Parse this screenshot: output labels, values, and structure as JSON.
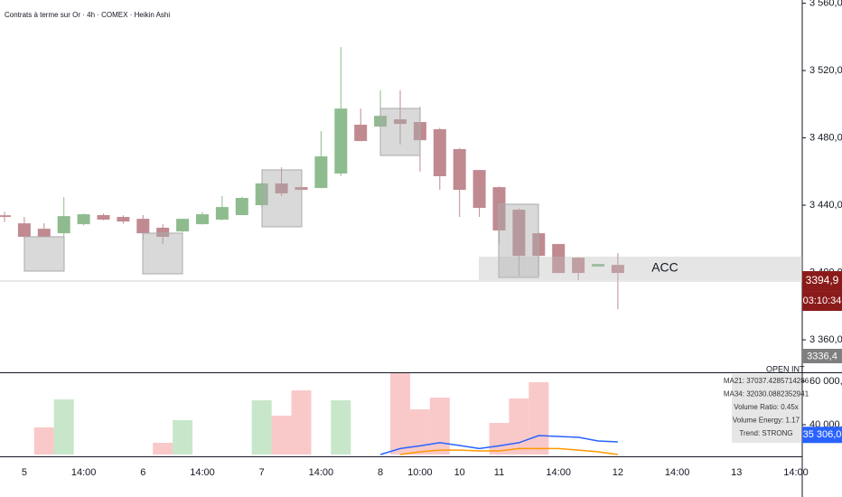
{
  "chart_data": [
    {
      "type": "candlestick",
      "title": "Contrats à terme sur Or · 4h · COMEX · Heikin Ashi",
      "x_labels": [
        null,
        "5",
        null,
        null,
        "14:00",
        null,
        null,
        "6",
        null,
        null,
        "14:00",
        null,
        null,
        "7",
        null,
        null,
        "14:00",
        null,
        null,
        "8",
        null,
        "10:00",
        null,
        "10",
        null,
        "11",
        null,
        null,
        "14:00",
        null,
        null,
        "12",
        null,
        null,
        "14:00",
        null,
        null,
        "13",
        null,
        null,
        "14:00"
      ],
      "open": [
        3434,
        3429.2,
        3426,
        3423.3,
        3428.7,
        3434.1,
        3433,
        3431.9,
        3426.6,
        3424.4,
        3428.7,
        3431.4,
        3434.1,
        3440,
        3452.9,
        3450.7,
        3450.2,
        3458.8,
        3487.8,
        3486.7,
        3491,
        3489.4,
        3485.1,
        3473.3,
        3460.9,
        3450.7,
        3437.3,
        3423.3,
        3416.9,
        3408.8,
        3403.5,
        3404.5
      ],
      "high": [
        3436,
        3433,
        3429.2,
        3444.8,
        3435,
        3435,
        3434,
        3434.1,
        3428.7,
        3432,
        3436,
        3445.4,
        3445,
        3453.5,
        3462.5,
        3451,
        3484,
        3534,
        3497.4,
        3508.2,
        3508.2,
        3498.5,
        3486,
        3474,
        3461,
        3451,
        3438,
        3424,
        3417,
        3409,
        3405.1,
        3411.5
      ],
      "low": [
        3430,
        3419.6,
        3421.2,
        3421.2,
        3428,
        3431,
        3429,
        3419.6,
        3416.9,
        3424,
        3428.5,
        3431,
        3434,
        3439,
        3445.4,
        3449,
        3450,
        3457.2,
        3478,
        3486,
        3476,
        3459.9,
        3449.1,
        3433,
        3433,
        3416.9,
        3398.1,
        3398.1,
        3399.7,
        3395.4,
        3403.5,
        3378.2
      ],
      "close": [
        3433,
        3421.2,
        3421.2,
        3433.5,
        3434.6,
        3431.4,
        3430.3,
        3423.3,
        3421.2,
        3431.9,
        3434.6,
        3438.9,
        3444.3,
        3452.9,
        3447,
        3449.1,
        3469,
        3497.4,
        3478.1,
        3493.1,
        3488.3,
        3478.6,
        3457.2,
        3449.1,
        3438.4,
        3425,
        3409.9,
        3409.9,
        3399.7,
        3399.7,
        3405.1,
        3399.7
      ],
      "up_color": "#8fbc8f",
      "down_color": "#c08a90",
      "ylim": [
        3340.7,
        3561.9
      ],
      "yticks": [
        {
          "value": 3360,
          "label": "3 360,0"
        },
        {
          "value": 3400,
          "label": "3 400,0"
        },
        {
          "value": 3440,
          "label": "3 440,0"
        },
        {
          "value": 3480,
          "label": "3 480,0"
        },
        {
          "value": 3520,
          "label": "3 520,0"
        },
        {
          "value": 3560,
          "label": "3 560,0"
        }
      ],
      "last_price": {
        "value": 3394.9,
        "label": "3394,9"
      },
      "countdown": "03:10:34",
      "badge": "3336,4",
      "annotation": "ACC"
    },
    {
      "type": "bar",
      "values": [
        null,
        null,
        38750,
        51667,
        null,
        null,
        null,
        null,
        31667,
        42083,
        null,
        null,
        null,
        51250,
        44167,
        55833,
        null,
        51250,
        null,
        null,
        64000,
        47083,
        52500,
        null,
        null,
        40833,
        52083,
        59583,
        null,
        null,
        null,
        null
      ],
      "series": [
        {
          "color": "#2962ff",
          "values": [
            null,
            null,
            null,
            null,
            null,
            null,
            null,
            null,
            null,
            null,
            null,
            null,
            null,
            null,
            null,
            null,
            null,
            null,
            null,
            26250,
            29000,
            30250,
            31700,
            30400,
            29000,
            30250,
            31700,
            35000,
            34600,
            34200,
            32500,
            32100
          ]
        },
        {
          "color": "#ff9800",
          "values": [
            null,
            null,
            null,
            null,
            null,
            null,
            null,
            null,
            null,
            null,
            null,
            null,
            null,
            null,
            null,
            null,
            null,
            null,
            null,
            null,
            26250,
            27500,
            28300,
            28300,
            27900,
            27900,
            29000,
            29000,
            29000,
            28300,
            27500,
            26250
          ]
        }
      ],
      "ylim": [
        26250,
        63750
      ],
      "yticks": [
        {
          "value": 40000,
          "label": "40 000,0"
        },
        {
          "value": 60000,
          "label": "60 000,0"
        }
      ],
      "last_value": {
        "value": 35306,
        "label": "35 306,0"
      },
      "overlay_label": "OPEN INT",
      "info": [
        "MA21: 37037.4285714286",
        "MA34: 32030.0882352941",
        "Volume Ratio: 0.45x",
        "Volume Energy: 1.17",
        "Trend: STRONG"
      ]
    }
  ]
}
